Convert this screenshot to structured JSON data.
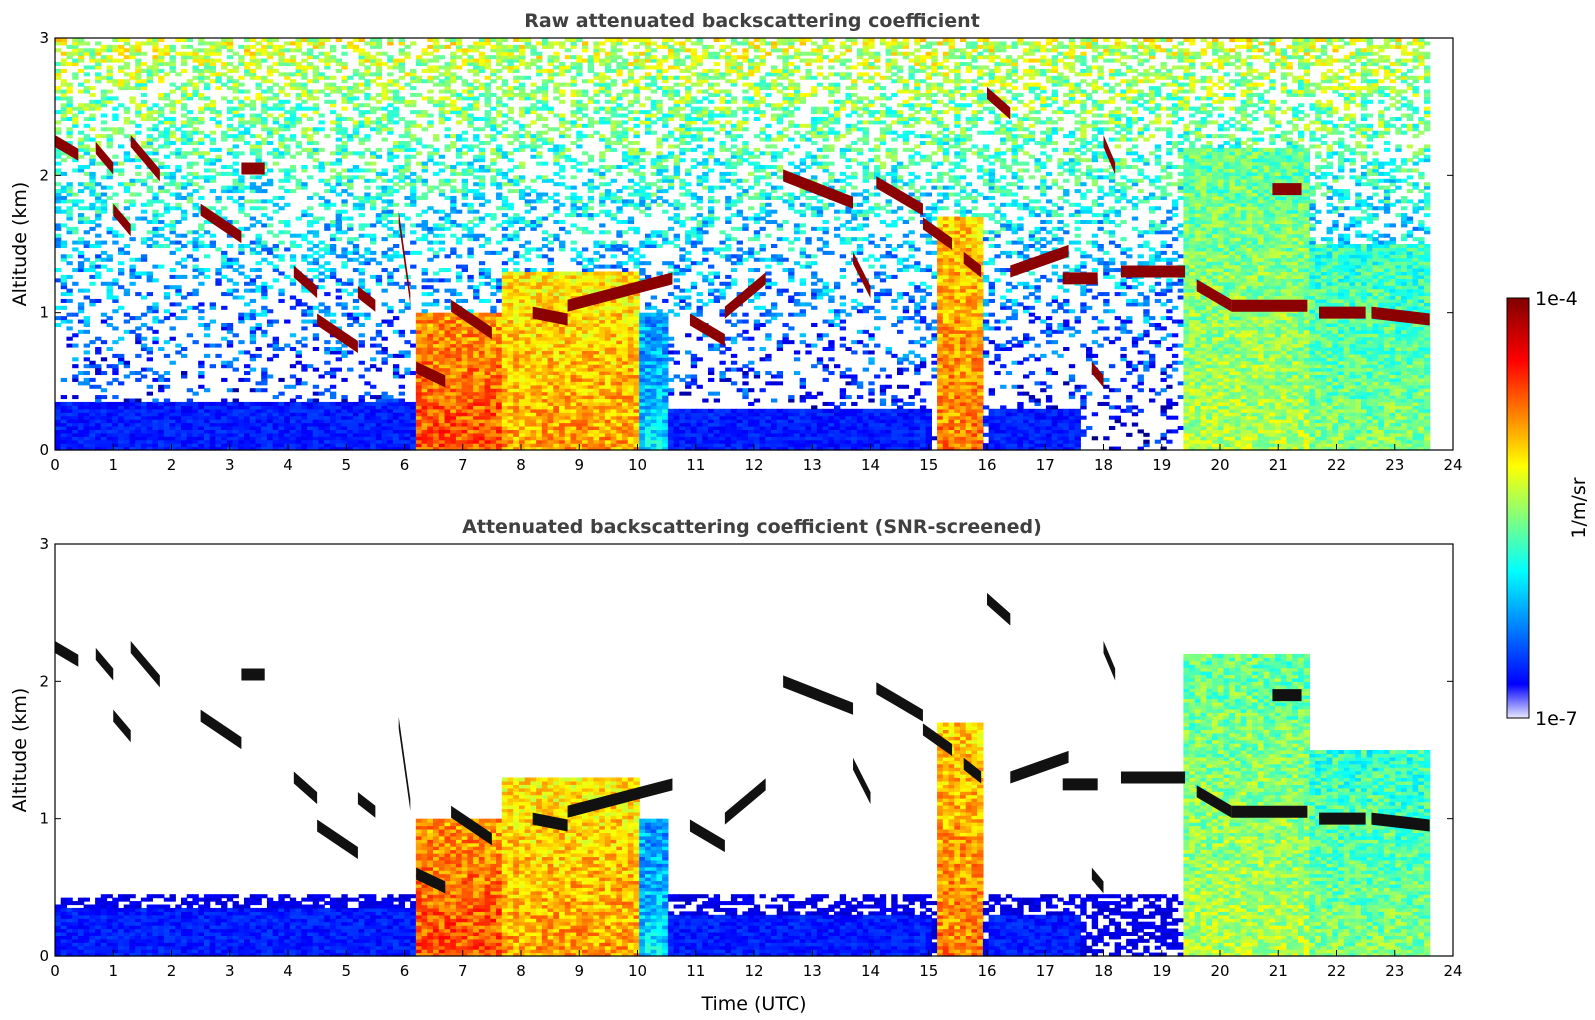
{
  "chart_data": [
    {
      "type": "heatmap",
      "title": "Raw attenuated backscattering coefficient",
      "xlabel": "",
      "ylabel": "Altitude (km)",
      "xlim": [
        0,
        24
      ],
      "ylim": [
        0,
        3
      ],
      "xticks": [
        "0",
        "1",
        "2",
        "3",
        "4",
        "5",
        "6",
        "7",
        "8",
        "9",
        "10",
        "11",
        "12",
        "13",
        "14",
        "15",
        "16",
        "17",
        "18",
        "19",
        "20",
        "21",
        "22",
        "23",
        "24"
      ],
      "yticks": [
        "0",
        "1",
        "2",
        "3"
      ],
      "data_end_time": 23.6,
      "boundary_layer": [
        {
          "t0": 0.0,
          "t1": 6.2,
          "top_km": 0.35,
          "level": 0.15
        },
        {
          "t0": 10.5,
          "t1": 15.0,
          "top_km": 0.3,
          "level": 0.15
        },
        {
          "t0": 16.0,
          "t1": 17.6,
          "top_km": 0.3,
          "level": 0.15
        }
      ],
      "aerosol_columns": [
        {
          "t0": 6.2,
          "t1": 7.7,
          "top_km": 1.0,
          "level": 0.8
        },
        {
          "t0": 7.7,
          "t1": 10.0,
          "top_km": 1.3,
          "level": 0.72
        },
        {
          "t0": 10.0,
          "t1": 10.5,
          "top_km": 1.0,
          "level": 0.35
        },
        {
          "t0": 15.1,
          "t1": 15.9,
          "top_km": 1.7,
          "level": 0.75
        },
        {
          "t0": 19.4,
          "t1": 21.5,
          "top_km": 2.2,
          "level": 0.55
        },
        {
          "t0": 21.5,
          "t1": 23.6,
          "top_km": 1.5,
          "level": 0.5
        }
      ],
      "cloud_segments": [
        {
          "t0": 0.0,
          "t1": 0.4,
          "y0": 2.25,
          "y1": 2.15
        },
        {
          "t0": 0.7,
          "t1": 1.0,
          "y0": 2.2,
          "y1": 2.05
        },
        {
          "t0": 1.0,
          "t1": 1.3,
          "y0": 1.75,
          "y1": 1.6
        },
        {
          "t0": 1.3,
          "t1": 1.8,
          "y0": 2.25,
          "y1": 2.0
        },
        {
          "t0": 2.5,
          "t1": 3.2,
          "y0": 1.75,
          "y1": 1.55
        },
        {
          "t0": 3.2,
          "t1": 3.6,
          "y0": 2.05,
          "y1": 2.05
        },
        {
          "t0": 4.1,
          "t1": 4.5,
          "y0": 1.3,
          "y1": 1.15
        },
        {
          "t0": 4.5,
          "t1": 5.2,
          "y0": 0.95,
          "y1": 0.75
        },
        {
          "t0": 5.2,
          "t1": 5.5,
          "y0": 1.15,
          "y1": 1.05
        },
        {
          "t0": 5.9,
          "t1": 6.1,
          "y0": 1.7,
          "y1": 1.1
        },
        {
          "t0": 6.2,
          "t1": 6.7,
          "y0": 0.6,
          "y1": 0.5
        },
        {
          "t0": 6.8,
          "t1": 7.5,
          "y0": 1.05,
          "y1": 0.85
        },
        {
          "t0": 8.2,
          "t1": 8.8,
          "y0": 1.0,
          "y1": 0.95
        },
        {
          "t0": 8.8,
          "t1": 10.6,
          "y0": 1.05,
          "y1": 1.25
        },
        {
          "t0": 10.9,
          "t1": 11.5,
          "y0": 0.95,
          "y1": 0.8
        },
        {
          "t0": 11.5,
          "t1": 12.2,
          "y0": 1.0,
          "y1": 1.25
        },
        {
          "t0": 12.5,
          "t1": 13.7,
          "y0": 2.0,
          "y1": 1.8
        },
        {
          "t0": 13.7,
          "t1": 14.0,
          "y0": 1.4,
          "y1": 1.15
        },
        {
          "t0": 14.1,
          "t1": 14.9,
          "y0": 1.95,
          "y1": 1.75
        },
        {
          "t0": 14.9,
          "t1": 15.4,
          "y0": 1.65,
          "y1": 1.5
        },
        {
          "t0": 15.6,
          "t1": 15.9,
          "y0": 1.4,
          "y1": 1.3
        },
        {
          "t0": 16.0,
          "t1": 16.4,
          "y0": 2.6,
          "y1": 2.45
        },
        {
          "t0": 16.4,
          "t1": 17.4,
          "y0": 1.3,
          "y1": 1.45
        },
        {
          "t0": 17.3,
          "t1": 17.9,
          "y0": 1.25,
          "y1": 1.25
        },
        {
          "t0": 17.8,
          "t1": 18.0,
          "y0": 0.6,
          "y1": 0.5
        },
        {
          "t0": 18.0,
          "t1": 18.2,
          "y0": 2.25,
          "y1": 2.05
        },
        {
          "t0": 18.3,
          "t1": 19.4,
          "y0": 1.3,
          "y1": 1.3
        },
        {
          "t0": 19.6,
          "t1": 20.2,
          "y0": 1.2,
          "y1": 1.05
        },
        {
          "t0": 20.2,
          "t1": 21.5,
          "y0": 1.05,
          "y1": 1.05
        },
        {
          "t0": 20.9,
          "t1": 21.4,
          "y0": 1.9,
          "y1": 1.9
        },
        {
          "t0": 21.7,
          "t1": 22.5,
          "y0": 1.0,
          "y1": 1.0
        },
        {
          "t0": 22.6,
          "t1": 23.6,
          "y0": 1.0,
          "y1": 0.95
        }
      ]
    },
    {
      "type": "heatmap",
      "title": "Attenuated backscattering coefficient (SNR-screened)",
      "xlabel": "Time (UTC)",
      "ylabel": "Altitude (km)",
      "xlim": [
        0,
        24
      ],
      "ylim": [
        0,
        3
      ],
      "xticks": [
        "0",
        "1",
        "2",
        "3",
        "4",
        "5",
        "6",
        "7",
        "8",
        "9",
        "10",
        "11",
        "12",
        "13",
        "14",
        "15",
        "16",
        "17",
        "18",
        "19",
        "20",
        "21",
        "22",
        "23",
        "24"
      ],
      "yticks": [
        "0",
        "1",
        "2",
        "3"
      ],
      "screened": true
    }
  ],
  "colorbar": {
    "label": "1/m/sr",
    "max_label": "1e-4",
    "min_label": "1e-7",
    "colormap": "jet",
    "colors": [
      "#e8e8ff",
      "#0000ff",
      "#00ffff",
      "#ffff00",
      "#ff0000",
      "#800000"
    ]
  }
}
